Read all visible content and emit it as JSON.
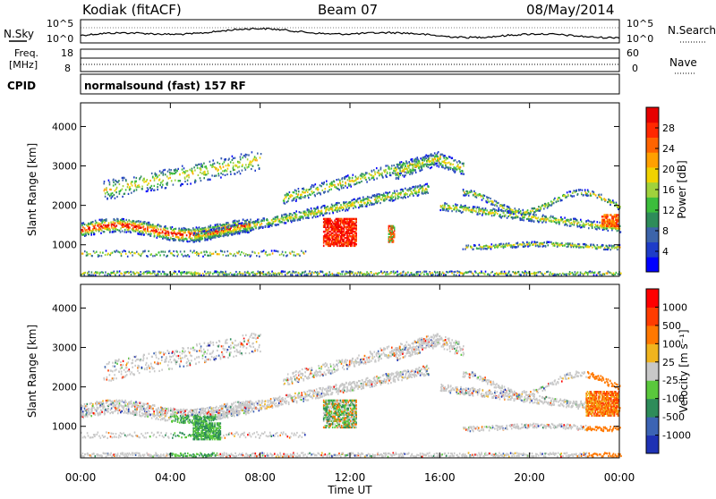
{
  "header": {
    "station": "Kodiak (fitACF)",
    "beam": "Beam 07",
    "date": "08/May/2014"
  },
  "summary_panels": {
    "nsky": {
      "label": "N.Sky",
      "tick_top": "10^5",
      "tick_bottom": "10^0",
      "right_label": "N.Search",
      "right_tick_top": "10^5",
      "right_tick_bottom": "10^0"
    },
    "freq": {
      "label_line1": "Freq.",
      "label_line2": "[MHz]",
      "tick_top": "18",
      "tick_bottom": "8",
      "right_label": "Nave",
      "right_tick_top": "60",
      "right_tick_bottom": "0"
    },
    "cpid": {
      "label": "CPID",
      "value": "normalsound (fast) 157 RF"
    }
  },
  "chart_data": [
    {
      "type": "heatmap",
      "title": "",
      "ylabel": "Slant Range [km]",
      "xlabel": "",
      "ylim": [
        200,
        4600
      ],
      "yticks": [
        1000,
        2000,
        3000,
        4000
      ],
      "xlim": [
        0,
        24
      ],
      "colorbar": {
        "label": "Power [dB]",
        "ticks": [
          "4",
          "8",
          "12",
          "16",
          "20",
          "24",
          "28"
        ],
        "colors": [
          "#0000ff",
          "#1e3cc8",
          "#3c64aa",
          "#2e8c5a",
          "#3cbe3c",
          "#a0d23c",
          "#f0d200",
          "#ffa000",
          "#ff6400",
          "#ff2800",
          "#e60000"
        ]
      }
    },
    {
      "type": "heatmap",
      "title": "",
      "ylabel": "Slant Range [km]",
      "xlabel": "Time UT",
      "ylim": [
        200,
        4600
      ],
      "yticks": [
        1000,
        2000,
        3000,
        4000
      ],
      "xlim": [
        0,
        24
      ],
      "xticks": [
        "00:00",
        "04:00",
        "08:00",
        "12:00",
        "16:00",
        "20:00",
        "00:00"
      ],
      "colorbar": {
        "label": "Velocity [m s⁻¹]",
        "ticks": [
          "1000",
          "500",
          "100",
          "25",
          "-25",
          "-100",
          "-500",
          "-1000"
        ],
        "colors": [
          "#1e32b4",
          "#3c64b4",
          "#2e8c5a",
          "#5ac83c",
          "#c8c8c8",
          "#f0b41e",
          "#ff7800",
          "#ff3c00",
          "#ff0000"
        ]
      }
    }
  ]
}
